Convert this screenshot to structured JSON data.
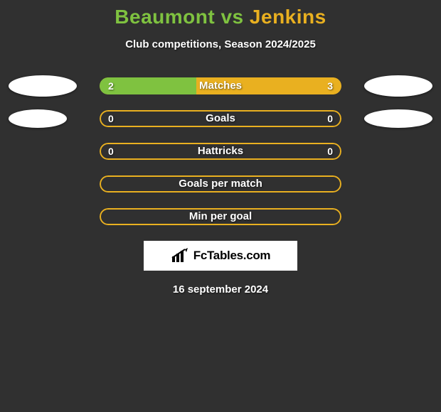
{
  "title": {
    "player1": "Beaumont",
    "vs": "vs",
    "player2": "Jenkins"
  },
  "subtitle": "Club competitions, Season 2024/2025",
  "colors": {
    "player1": "#7fc240",
    "player2": "#e9b020",
    "background": "#303030",
    "bar_bg": "#303030",
    "text": "#ffffff",
    "blob": "#ffffff",
    "brand_bg": "#ffffff",
    "brand_text": "#000000"
  },
  "bar": {
    "height": 24,
    "radius": 12,
    "outer_width": 340,
    "gap": 22
  },
  "blobs": {
    "row0": {
      "left_w": 96,
      "left_h": 30,
      "right_w": 96,
      "right_h": 30
    },
    "row1": {
      "left_w": 82,
      "left_h": 26,
      "right_w": 96,
      "right_h": 26
    }
  },
  "rows": [
    {
      "label": "Matches",
      "left_val": "2",
      "right_val": "3",
      "left_pct": 40,
      "right_pct": 60,
      "show_blobs": true,
      "show_vals": true
    },
    {
      "label": "Goals",
      "left_val": "0",
      "right_val": "0",
      "left_pct": 0,
      "right_pct": 0,
      "show_blobs": true,
      "show_vals": true
    },
    {
      "label": "Hattricks",
      "left_val": "0",
      "right_val": "0",
      "left_pct": 0,
      "right_pct": 0,
      "show_blobs": false,
      "show_vals": true
    },
    {
      "label": "Goals per match",
      "left_val": "",
      "right_val": "",
      "left_pct": 0,
      "right_pct": 0,
      "show_blobs": false,
      "show_vals": false
    },
    {
      "label": "Min per goal",
      "left_val": "",
      "right_val": "",
      "left_pct": 0,
      "right_pct": 0,
      "show_blobs": false,
      "show_vals": false
    }
  ],
  "brand": "FcTables.com",
  "date": "16 september 2024"
}
